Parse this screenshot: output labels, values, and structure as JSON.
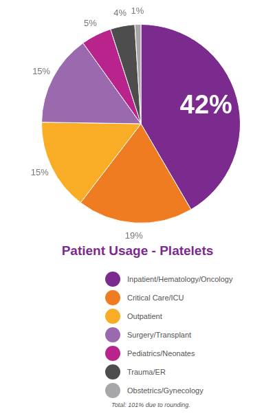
{
  "chart_data": {
    "type": "pie",
    "title": "Patient Usage - Platelets",
    "categories": [
      "Inpatient/Hematology/Oncology",
      "Critical Care/ICU",
      "Outpatient",
      "Surgery/Transplant",
      "Pediatrics/Neonates",
      "Trauma/ER",
      "Obstetrics/Gynecology"
    ],
    "values": [
      42,
      19,
      15,
      15,
      5,
      4,
      1
    ],
    "value_labels": [
      "42%",
      "19%",
      "15%",
      "15%",
      "5%",
      "4%",
      "1%"
    ],
    "colors": [
      "#7b2a8e",
      "#f07c22",
      "#f9ac25",
      "#9b6aae",
      "#b8248c",
      "#4d4d4d",
      "#a7a7a9"
    ],
    "data_labels": true,
    "legend": "bottom",
    "footnote": "Total: 101% due to rounding."
  }
}
